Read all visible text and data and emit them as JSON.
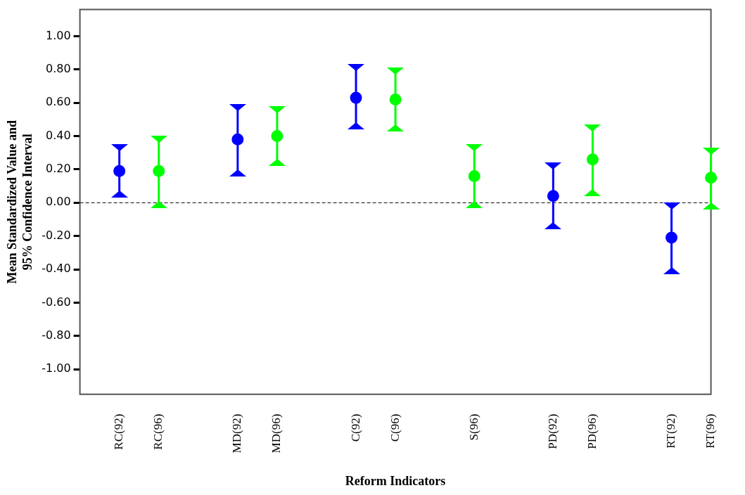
{
  "chart_data": {
    "type": "scatter",
    "xlabel": "Reform Indicators",
    "ylabel": "Mean Standardized Value and\n95% Confidence Interval",
    "categories": [
      null,
      "RC(92)",
      "RC(96)",
      null,
      "MD(92)",
      "MD(96)",
      null,
      "C(92)",
      "C(96)",
      null,
      "S(96)",
      null,
      "PD(92)",
      "PD(96)",
      null,
      "RT(92)",
      "RT(96)"
    ],
    "series": [
      {
        "color": "#0000ff",
        "values": [
          null,
          0.19,
          null,
          null,
          0.38,
          null,
          null,
          0.63,
          null,
          null,
          null,
          null,
          0.04,
          null,
          null,
          -0.21,
          null
        ],
        "errors": [
          null,
          [
            0.05,
            0.33
          ],
          null,
          null,
          [
            0.18,
            0.57
          ],
          null,
          null,
          [
            0.46,
            0.81
          ],
          null,
          null,
          null,
          null,
          [
            -0.14,
            0.22
          ],
          null,
          null,
          [
            -0.41,
            -0.02
          ],
          null
        ]
      },
      {
        "color": "#00ff00",
        "values": [
          null,
          null,
          0.19,
          null,
          null,
          0.4,
          null,
          null,
          0.62,
          null,
          0.16,
          null,
          null,
          0.26,
          null,
          null,
          0.15
        ],
        "errors": [
          null,
          null,
          [
            -0.01,
            0.38
          ],
          null,
          null,
          [
            0.24,
            0.56
          ],
          null,
          null,
          [
            0.45,
            0.79
          ],
          null,
          [
            -0.01,
            0.33
          ],
          null,
          null,
          [
            0.06,
            0.45
          ],
          null,
          null,
          [
            -0.02,
            0.31
          ]
        ]
      }
    ],
    "ylim": [
      -1.15,
      1.16
    ],
    "yticks": [
      {
        "value": -1,
        "label": "-1.00"
      },
      {
        "value": -0.8,
        "label": "-0.80"
      },
      {
        "value": -0.6,
        "label": "-0.60"
      },
      {
        "value": -0.4,
        "label": "-0.40"
      },
      {
        "value": -0.2,
        "label": "-0.20"
      },
      {
        "value": 0,
        "label": "0.00"
      },
      {
        "value": 0.2,
        "label": "0.20"
      },
      {
        "value": 0.4,
        "label": "0.40"
      },
      {
        "value": 0.6,
        "label": "0.60"
      },
      {
        "value": 0.8,
        "label": "0.80"
      },
      {
        "value": 1,
        "label": "1.00"
      }
    ],
    "ref_lines": [
      {
        "axis": "y",
        "value": 0,
        "color": "#000000",
        "line_style": "dashed"
      }
    ],
    "marker": "circle",
    "grid": false,
    "legend": false
  }
}
